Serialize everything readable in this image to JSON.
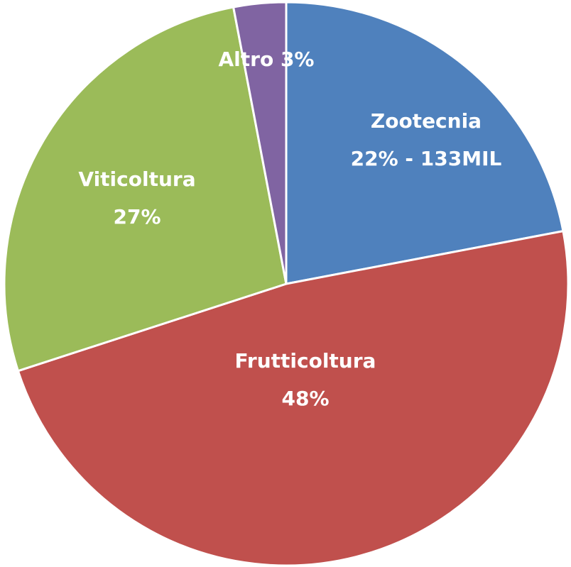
{
  "chart_data": {
    "type": "pie",
    "categories": [
      "Zootecnia",
      "Frutticoltura",
      "Viticoltura",
      "Altro"
    ],
    "values": [
      22,
      48,
      27,
      3
    ],
    "value_labels": [
      "22% - 133MIL",
      "48%",
      "27%",
      "3%"
    ],
    "colors": [
      "#4f81bd",
      "#c0504d",
      "#9bbb59",
      "#8064a2"
    ]
  }
}
